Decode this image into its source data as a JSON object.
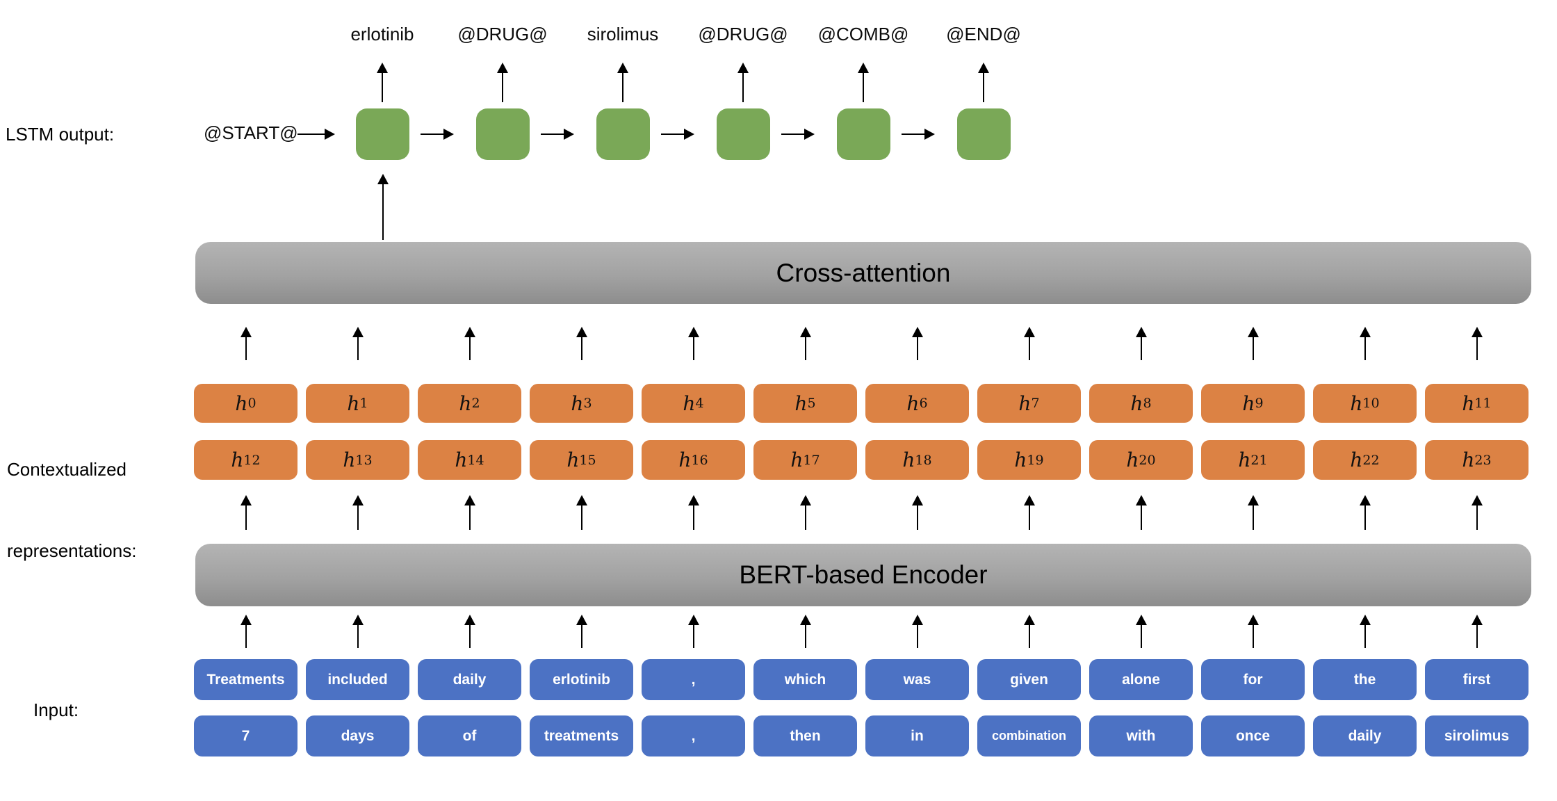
{
  "diagram": {
    "side_labels": {
      "lstm": "LSTM output:",
      "contextual_line1": "Contextualized",
      "contextual_line2": "representations:",
      "input": "Input:"
    },
    "lstm": {
      "start": "@START@",
      "outputs": [
        "erlotinib",
        "@DRUG@",
        "sirolimus",
        "@DRUG@",
        "@COMB@",
        "@END@"
      ]
    },
    "bars": {
      "cross_attention": "Cross-attention",
      "encoder": "BERT-based Encoder"
    },
    "hidden_states": {
      "base": "h",
      "row1": [
        "0",
        "1",
        "2",
        "3",
        "4",
        "5",
        "6",
        "7",
        "8",
        "9",
        "10",
        "11"
      ],
      "row2": [
        "12",
        "13",
        "14",
        "15",
        "16",
        "17",
        "18",
        "19",
        "20",
        "21",
        "22",
        "23"
      ]
    },
    "input_tokens": {
      "row1": [
        "Treatments",
        "included",
        "daily",
        "erlotinib",
        ",",
        "which",
        "was",
        "given",
        "alone",
        "for",
        "the",
        "first"
      ],
      "row2": [
        "7",
        "days",
        "of",
        "treatments",
        ",",
        "then",
        "in",
        "combination",
        "with",
        "once",
        "daily",
        "sirolimus"
      ]
    },
    "colors": {
      "green": "#7AA857",
      "orange": "#DC8244",
      "blue": "#4C72C4",
      "gray_light": "#b4b4b4",
      "gray_dark": "#8d8d8d",
      "arrow": "#000000",
      "token_text": "#ffffff"
    }
  }
}
